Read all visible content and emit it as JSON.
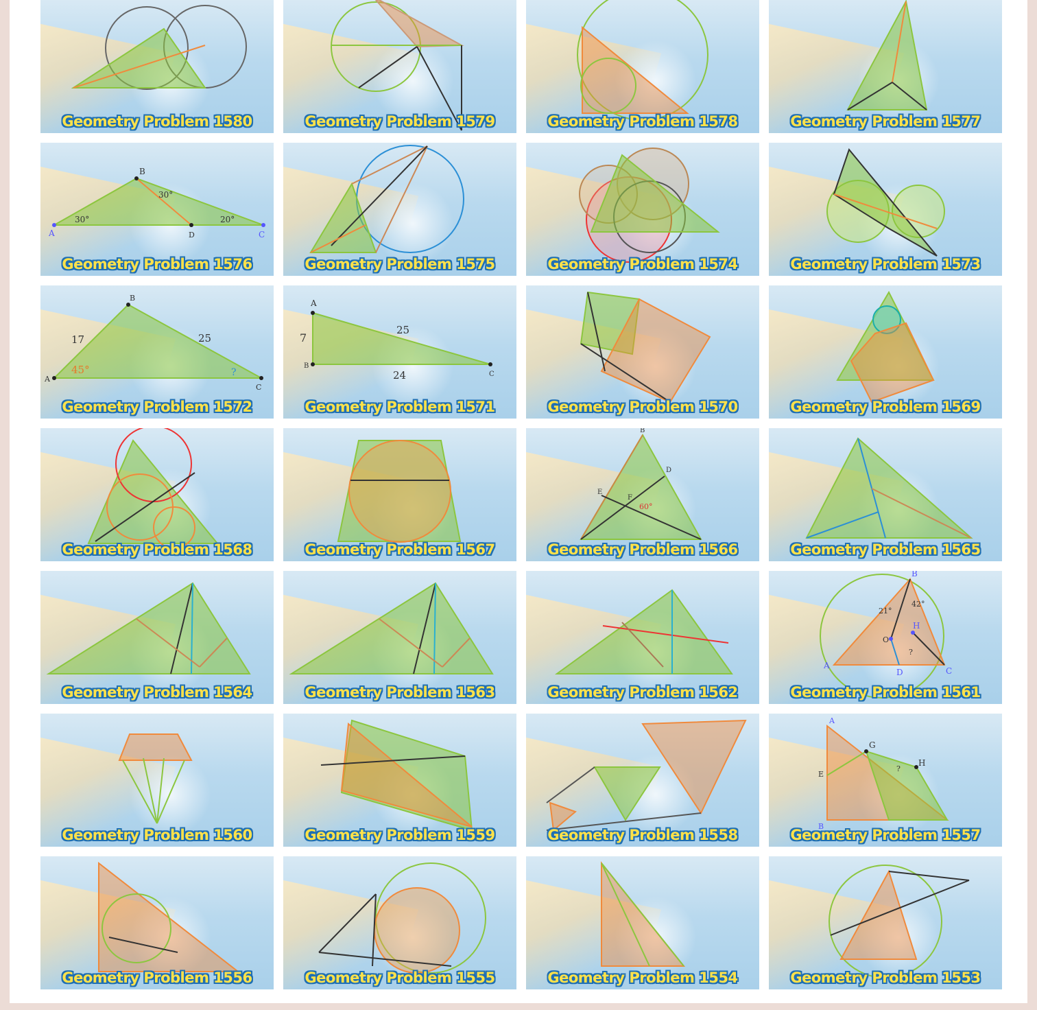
{
  "colors": {
    "caption_text": "#ffe24a",
    "caption_outline": "#1f6fb3",
    "page_border": "#ecdcd6"
  },
  "tiles": [
    {
      "label": "Geometry Problem 1580",
      "variant": "triangle-two-circles"
    },
    {
      "label": "Geometry Problem 1579",
      "variant": "circle-quadrilateral"
    },
    {
      "label": "Geometry Problem 1578",
      "variant": "incircle-circumcircle"
    },
    {
      "label": "Geometry Problem 1577",
      "variant": "tall-triangle"
    },
    {
      "label": "Geometry Problem 1576",
      "variant": "obtuse-triangle"
    },
    {
      "label": "Geometry Problem 1575",
      "variant": "tangent-circle"
    },
    {
      "label": "Geometry Problem 1574",
      "variant": "many-circles"
    },
    {
      "label": "Geometry Problem 1573",
      "variant": "two-circles-quad"
    },
    {
      "label": "Geometry Problem 1572",
      "variant": "triangle-sides"
    },
    {
      "label": "Geometry Problem 1571",
      "variant": "right-triangle"
    },
    {
      "label": "Geometry Problem 1570",
      "variant": "two-squares"
    },
    {
      "label": "Geometry Problem 1569",
      "variant": "triangle-square"
    },
    {
      "label": "Geometry Problem 1568",
      "variant": "triangle-circles"
    },
    {
      "label": "Geometry Problem 1567",
      "variant": "trapezoid-circle"
    },
    {
      "label": "Geometry Problem 1566",
      "variant": "cevians"
    },
    {
      "label": "Geometry Problem 1565",
      "variant": "triangle-perp"
    },
    {
      "label": "Geometry Problem 1564",
      "variant": "triangle-medians"
    },
    {
      "label": "Geometry Problem 1563",
      "variant": "triangle-medians"
    },
    {
      "label": "Geometry Problem 1562",
      "variant": "triangle-line"
    },
    {
      "label": "Geometry Problem 1561",
      "variant": "circumcircle"
    },
    {
      "label": "Geometry Problem 1560",
      "variant": "kite-fan"
    },
    {
      "label": "Geometry Problem 1559",
      "variant": "quad-triangle"
    },
    {
      "label": "Geometry Problem 1558",
      "variant": "three-triangles"
    },
    {
      "label": "Geometry Problem 1557",
      "variant": "right-triangle-square"
    },
    {
      "label": "Geometry Problem 1556",
      "variant": "right-triangle-incircle"
    },
    {
      "label": "Geometry Problem 1555",
      "variant": "two-circles-lines"
    },
    {
      "label": "Geometry Problem 1554",
      "variant": "thin-triangle"
    },
    {
      "label": "Geometry Problem 1553",
      "variant": "circle-triangle"
    }
  ],
  "figures": {
    "triangle-sides": {
      "labels": [
        "A",
        "B",
        "C"
      ],
      "sides": [
        "17",
        "25"
      ],
      "angles": [
        "45°",
        "?"
      ]
    },
    "right-triangle": {
      "labels": [
        "A",
        "B",
        "C"
      ],
      "sides": [
        "7",
        "25",
        "24"
      ]
    },
    "obtuse-triangle": {
      "labels": [
        "A",
        "B",
        "C",
        "D"
      ],
      "angles": [
        "30°",
        "30°",
        "20°"
      ]
    },
    "cevians": {
      "labels": [
        "B",
        "D",
        "E",
        "F"
      ],
      "angles": [
        "60°"
      ]
    },
    "circumcircle": {
      "labels": [
        "A",
        "B",
        "C",
        "D",
        "H",
        "O"
      ],
      "angles": [
        "21°",
        "42°",
        "?"
      ]
    },
    "right-triangle-square": {
      "labels": [
        "A",
        "B",
        "E",
        "G",
        "H"
      ],
      "angles": [
        "?"
      ]
    }
  }
}
